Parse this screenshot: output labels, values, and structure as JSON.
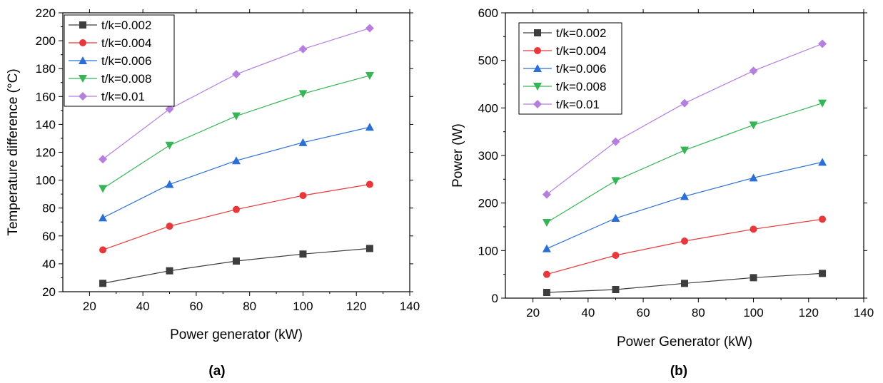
{
  "chart_data": [
    {
      "type": "line",
      "panel_label": "(a)",
      "xlabel": "Power generator (kW)",
      "ylabel": "Temperature difference (°C)",
      "xlim": [
        10,
        140
      ],
      "ylim": [
        20,
        220
      ],
      "xticks": [
        20,
        40,
        60,
        80,
        100,
        120,
        140
      ],
      "yticks": [
        20,
        40,
        60,
        80,
        100,
        120,
        140,
        160,
        180,
        200,
        220
      ],
      "legend_position": "top-left",
      "grid": false,
      "x": [
        25,
        50,
        75,
        100,
        125
      ],
      "series": [
        {
          "name": "t/k=0.002",
          "color": "#3d3d3d",
          "marker": "square",
          "values": [
            26,
            35,
            42,
            47,
            51
          ]
        },
        {
          "name": "t/k=0.004",
          "color": "#e8383b",
          "marker": "circle",
          "values": [
            50,
            67,
            79,
            89,
            97
          ]
        },
        {
          "name": "t/k=0.006",
          "color": "#2b6fd6",
          "marker": "triangle-up",
          "values": [
            73,
            97,
            114,
            127,
            138
          ]
        },
        {
          "name": "t/k=0.008",
          "color": "#36b556",
          "marker": "triangle-down",
          "values": [
            94,
            125,
            146,
            162,
            175
          ]
        },
        {
          "name": "t/k=0.01",
          "color": "#b57fe0",
          "marker": "diamond",
          "values": [
            115,
            151,
            176,
            194,
            209
          ]
        }
      ]
    },
    {
      "type": "line",
      "panel_label": "(b)",
      "xlabel": "Power Generator (kW)",
      "ylabel": "Power (W)",
      "xlim": [
        10,
        140
      ],
      "ylim": [
        0,
        600
      ],
      "xticks": [
        20,
        40,
        60,
        80,
        100,
        120,
        140
      ],
      "yticks": [
        0,
        100,
        200,
        300,
        400,
        500,
        600
      ],
      "legend_position": "top-left",
      "grid": false,
      "x": [
        25,
        50,
        75,
        100,
        125
      ],
      "series": [
        {
          "name": "t/k=0.002",
          "color": "#3d3d3d",
          "marker": "square",
          "values": [
            12,
            18,
            31,
            43,
            52
          ]
        },
        {
          "name": "t/k=0.004",
          "color": "#e8383b",
          "marker": "circle",
          "values": [
            50,
            90,
            120,
            145,
            166
          ]
        },
        {
          "name": "t/k=0.006",
          "color": "#2b6fd6",
          "marker": "triangle-up",
          "values": [
            104,
            168,
            214,
            253,
            286
          ]
        },
        {
          "name": "t/k=0.008",
          "color": "#36b556",
          "marker": "triangle-down",
          "values": [
            159,
            247,
            311,
            364,
            410
          ]
        },
        {
          "name": "t/k=0.01",
          "color": "#b57fe0",
          "marker": "diamond",
          "values": [
            218,
            329,
            410,
            478,
            535
          ]
        }
      ]
    }
  ]
}
